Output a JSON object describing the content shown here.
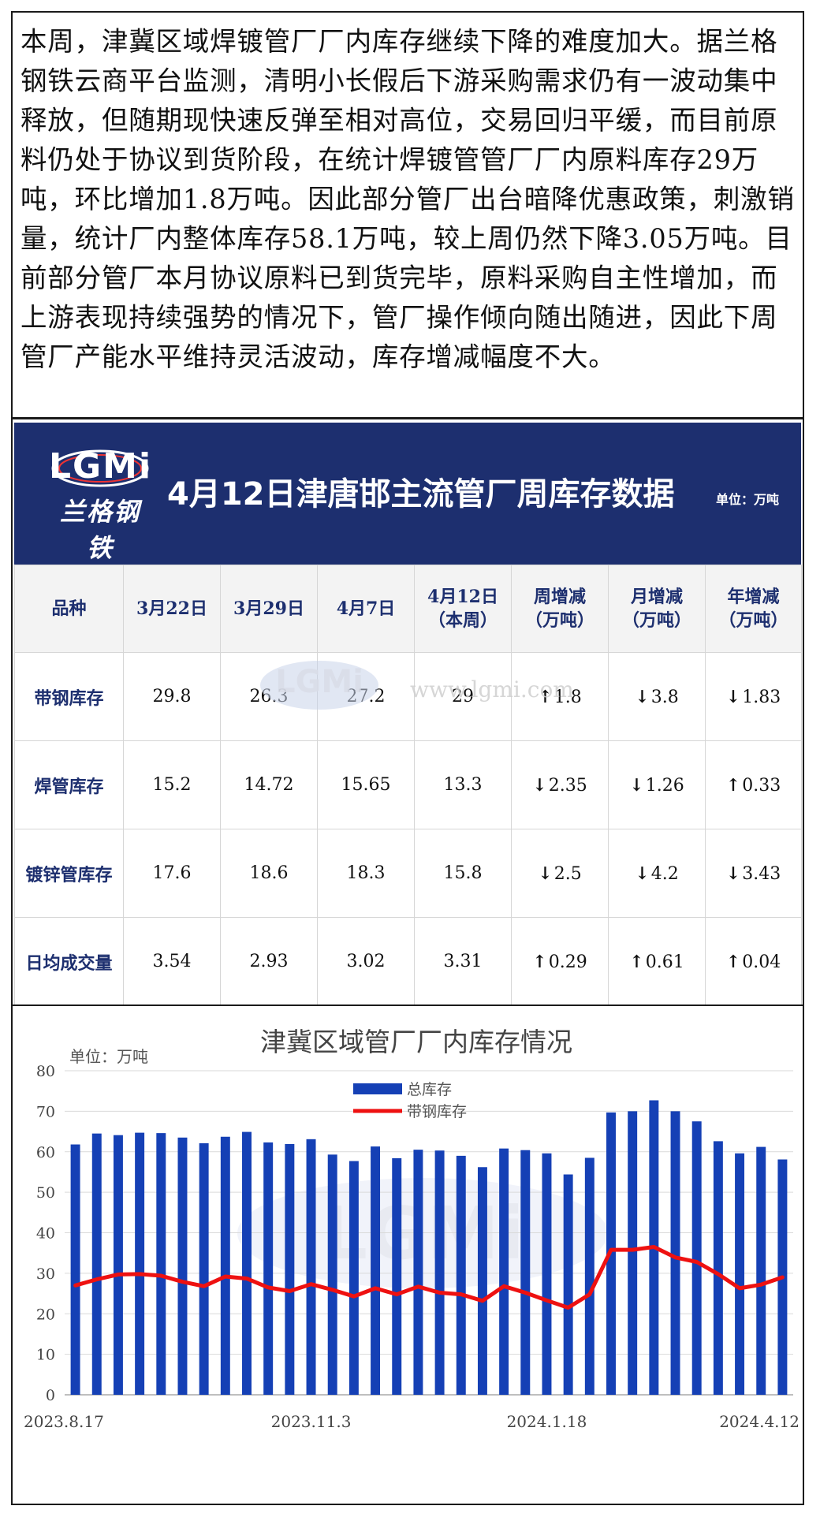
{
  "paragraph": "本周，津冀区域焊镀管厂厂内库存继续下降的难度加大。据兰格钢铁云商平台监测，清明小长假后下游采购需求仍有一波动集中释放，但随期现快速反弹至相对高位，交易回归平缓，而目前原料仍处于协议到货阶段，在统计焊镀管管厂厂内原料库存29万吨，环比增加1.8万吨。因此部分管厂出台暗降优惠政策，刺激销量，统计厂内整体库存58.1万吨，较上周仍然下降3.05万吨。目前部分管厂本月协议原料已到货完毕，原料采购自主性增加，而上游表现持续强势的情况下，管厂操作倾向随出随进，因此下周管厂产能水平维持灵活波动，库存增减幅度不大。",
  "banner": {
    "logo_text": "LGMi",
    "logo_cn": "兰格钢铁",
    "title": "4月12日津唐邯主流管厂周库存数据",
    "unit": "单位：万吨",
    "bg_color": "#1d2f6f"
  },
  "table": {
    "headers": [
      "品种",
      "3月22日",
      "3月29日",
      "4月7日",
      "4月12日（本周）",
      "周增减（万吨）",
      "月增减（万吨）",
      "年增减（万吨）"
    ],
    "header_lines": [
      [
        "品种"
      ],
      [
        "3月22日"
      ],
      [
        "3月29日"
      ],
      [
        "4月7日"
      ],
      [
        "4月12日",
        "（本周）"
      ],
      [
        "周增减",
        "（万吨）"
      ],
      [
        "月增减",
        "（万吨）"
      ],
      [
        "年增减",
        "（万吨）"
      ]
    ],
    "rows": [
      {
        "name": "带钢库存",
        "values": [
          "29.8",
          "26.3",
          "27.2",
          "29"
        ],
        "changes": [
          {
            "dir": "up",
            "val": "1.8"
          },
          {
            "dir": "down",
            "val": "3.8"
          },
          {
            "dir": "down",
            "val": "1.83"
          }
        ]
      },
      {
        "name": "焊管库存",
        "values": [
          "15.2",
          "14.72",
          "15.65",
          "13.3"
        ],
        "changes": [
          {
            "dir": "down",
            "val": "2.35"
          },
          {
            "dir": "down",
            "val": "1.26"
          },
          {
            "dir": "up",
            "val": "0.33"
          }
        ]
      },
      {
        "name": "镀锌管库存",
        "values": [
          "17.6",
          "18.6",
          "18.3",
          "15.8"
        ],
        "changes": [
          {
            "dir": "down",
            "val": "2.5"
          },
          {
            "dir": "down",
            "val": "4.2"
          },
          {
            "dir": "down",
            "val": "3.43"
          }
        ]
      },
      {
        "name": "日均成交量",
        "values": [
          "3.54",
          "2.93",
          "3.02",
          "3.31"
        ],
        "changes": [
          {
            "dir": "up",
            "val": "0.29"
          },
          {
            "dir": "up",
            "val": "0.61"
          },
          {
            "dir": "up",
            "val": "0.04"
          }
        ]
      }
    ],
    "up_color": "#ee1111",
    "down_color": "#1aa64a",
    "watermark_url": "www.lgmi.com"
  },
  "chart_data": {
    "type": "bar",
    "title": "津冀区域管厂厂内库存情况",
    "unit_label": "单位：万吨",
    "ylim": [
      0,
      80
    ],
    "yticks": [
      0,
      10,
      20,
      30,
      40,
      50,
      60,
      70,
      80
    ],
    "x_tick_labels": [
      {
        "index": 0,
        "label": "2023.8.17"
      },
      {
        "index": 11,
        "label": "2023.11.3"
      },
      {
        "index": 22,
        "label": "2024.1.18"
      },
      {
        "index": 34,
        "label": "2024.4.12"
      }
    ],
    "legend": [
      "总库存",
      "带钢库存"
    ],
    "legend_position": "top-center",
    "grid": true,
    "series": [
      {
        "name": "总库存",
        "type": "bar",
        "color": "#1540b5",
        "values": [
          61.8,
          64.5,
          64.1,
          64.7,
          64.6,
          63.5,
          62.1,
          63.7,
          64.9,
          62.3,
          61.9,
          63.1,
          59.3,
          57.7,
          61.3,
          58.4,
          60.5,
          60.3,
          59.0,
          56.2,
          60.8,
          60.4,
          59.6,
          54.4,
          58.5,
          69.7,
          70.0,
          72.7,
          70.0,
          67.5,
          62.6,
          59.6,
          61.2,
          58.1
        ]
      },
      {
        "name": "带钢库存",
        "type": "line",
        "color": "#ee1111",
        "values": [
          27.0,
          28.5,
          29.7,
          29.8,
          29.4,
          27.9,
          26.8,
          29.2,
          28.7,
          26.5,
          25.6,
          27.3,
          25.9,
          24.3,
          26.3,
          24.8,
          26.7,
          25.2,
          24.8,
          23.2,
          26.8,
          25.2,
          23.3,
          21.5,
          24.8,
          35.8,
          35.8,
          36.5,
          33.9,
          32.8,
          29.8,
          26.3,
          27.2,
          29.0
        ]
      }
    ]
  }
}
